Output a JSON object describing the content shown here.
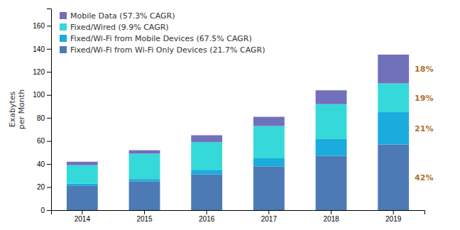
{
  "chart_data": {
    "type": "bar",
    "stacked": true,
    "categories": [
      "2014",
      "2015",
      "2016",
      "2017",
      "2018",
      "2019"
    ],
    "series": [
      {
        "name": "Fixed/Wi-Fi from Wi-Fi Only Devices (21.7% CAGR)",
        "color": "#4d7ab5",
        "values": [
          21,
          25,
          31,
          38,
          47,
          57
        ]
      },
      {
        "name": "Fixed/Wi-Fi from Mobile Devices (67.5% CAGR)",
        "color": "#1aacdc",
        "values": [
          2,
          2,
          4,
          7,
          15,
          28
        ]
      },
      {
        "name": "Fixed/Wired (9.9% CAGR)",
        "color": "#36d9d9",
        "values": [
          16,
          22,
          24,
          28,
          30,
          25
        ]
      },
      {
        "name": "Mobile Data (57.3% CAGR)",
        "color": "#7070bb",
        "values": [
          3,
          3,
          6,
          8,
          12,
          25
        ]
      }
    ],
    "y_label": "Exabytes\nper Month",
    "ylim": [
      0,
      175
    ],
    "yticks": [
      0,
      20,
      40,
      60,
      80,
      100,
      120,
      140,
      160
    ],
    "grid": false,
    "legend": "upper left",
    "annotations": [
      {
        "text": "42%",
        "color": "#b07030"
      },
      {
        "text": "21%",
        "color": "#b07030"
      },
      {
        "text": "19%",
        "color": "#b07030"
      },
      {
        "text": "18%",
        "color": "#b07030"
      }
    ]
  }
}
